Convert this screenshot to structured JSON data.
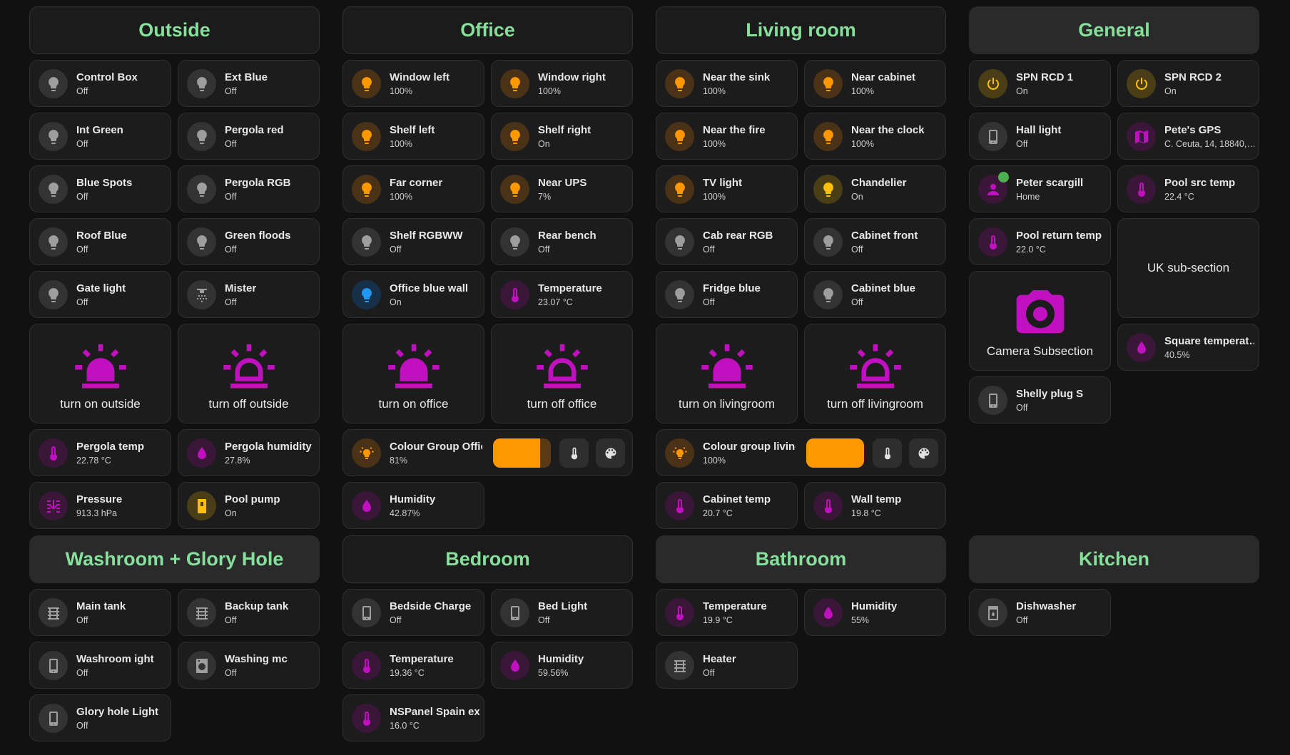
{
  "sections": [
    {
      "title": "Outside",
      "items": [
        {
          "name": "Control Box",
          "state": "Off"
        },
        {
          "name": "Ext Blue",
          "state": "Off"
        },
        {
          "name": "Int Green",
          "state": "Off"
        },
        {
          "name": "Pergola red",
          "state": "Off"
        },
        {
          "name": "Blue Spots",
          "state": "Off"
        },
        {
          "name": "Pergola RGB",
          "state": "Off"
        },
        {
          "name": "Roof Blue",
          "state": "Off"
        },
        {
          "name": "Green floods",
          "state": "Off"
        },
        {
          "name": "Gate light",
          "state": "Off"
        },
        {
          "name": "Mister",
          "state": "Off"
        },
        {
          "name": "turn on outside"
        },
        {
          "name": "turn off outside"
        },
        {
          "name": "Pergola temp",
          "state": "22.78 °C"
        },
        {
          "name": "Pergola humidity",
          "state": "27.8%"
        },
        {
          "name": "Pressure",
          "state": "913.3 hPa"
        },
        {
          "name": "Pool pump",
          "state": "On"
        }
      ]
    },
    {
      "title": "Office",
      "items": [
        {
          "name": "Window left",
          "state": "100%"
        },
        {
          "name": "Window right",
          "state": "100%"
        },
        {
          "name": "Shelf left",
          "state": "100%"
        },
        {
          "name": "Shelf right",
          "state": "On"
        },
        {
          "name": "Far corner",
          "state": "100%"
        },
        {
          "name": "Near UPS",
          "state": "7%"
        },
        {
          "name": "Shelf RGBWW",
          "state": "Off"
        },
        {
          "name": "Rear bench",
          "state": "Off"
        },
        {
          "name": "Office blue wall",
          "state": "On"
        },
        {
          "name": "Temperature",
          "state": "23.07 °C"
        },
        {
          "name": "turn on office"
        },
        {
          "name": "turn off office"
        },
        {
          "name": "Colour Group Office",
          "state": "81%"
        },
        {
          "name": "Humidity",
          "state": "42.87%"
        }
      ]
    },
    {
      "title": "Living room",
      "items": [
        {
          "name": "Near the sink",
          "state": "100%"
        },
        {
          "name": "Near cabinet",
          "state": "100%"
        },
        {
          "name": "Near the fire",
          "state": "100%"
        },
        {
          "name": "Near the clock",
          "state": "100%"
        },
        {
          "name": "TV light",
          "state": "100%"
        },
        {
          "name": "Chandelier",
          "state": "On"
        },
        {
          "name": "Cab rear RGB",
          "state": "Off"
        },
        {
          "name": "Cabinet front",
          "state": "Off"
        },
        {
          "name": "Fridge blue",
          "state": "Off"
        },
        {
          "name": "Cabinet blue",
          "state": "Off"
        },
        {
          "name": "turn on livingroom"
        },
        {
          "name": "turn off livingroom"
        },
        {
          "name": "Colour group living…",
          "state": "100%"
        },
        {
          "name": "Cabinet temp",
          "state": "20.7 °C"
        },
        {
          "name": "Wall temp",
          "state": "19.8 °C"
        }
      ]
    },
    {
      "title": "General",
      "items": [
        {
          "name": "SPN RCD 1",
          "state": "On"
        },
        {
          "name": "SPN RCD 2",
          "state": "On"
        },
        {
          "name": "Hall light",
          "state": "Off"
        },
        {
          "name": "Pete's GPS",
          "state": "C. Ceuta, 14, 18840,…"
        },
        {
          "name": "Peter scargill",
          "state": "Home"
        },
        {
          "name": "Pool src temp",
          "state": "22.4 °C"
        },
        {
          "name": "Pool return temp",
          "state": "22.0 °C"
        },
        {
          "name": "UK sub-section"
        },
        {
          "name": "Camera Subsection"
        },
        {
          "name": "Square temperat…",
          "state": "40.5%"
        },
        {
          "name": "Shelly plug S",
          "state": "Off"
        }
      ]
    },
    {
      "title": "Washroom + Glory Hole",
      "items": [
        {
          "name": "Main tank",
          "state": "Off"
        },
        {
          "name": "Backup tank",
          "state": "Off"
        },
        {
          "name": "Washroom ight",
          "state": "Off"
        },
        {
          "name": "Washing mc",
          "state": "Off"
        },
        {
          "name": "Glory hole Light",
          "state": "Off"
        }
      ]
    },
    {
      "title": "Bedroom",
      "items": [
        {
          "name": "Bedside Charge",
          "state": "Off"
        },
        {
          "name": "Bed Light",
          "state": "Off"
        },
        {
          "name": "Temperature",
          "state": "19.36 °C"
        },
        {
          "name": "Humidity",
          "state": "59.56%"
        },
        {
          "name": "NSPanel Spain ext",
          "state": "16.0 °C"
        }
      ]
    },
    {
      "title": "Bathroom",
      "items": [
        {
          "name": "Temperature",
          "state": "19.9 °C"
        },
        {
          "name": "Humidity",
          "state": "55%"
        },
        {
          "name": "Heater",
          "state": "Off"
        }
      ]
    },
    {
      "title": "Kitchen",
      "items": [
        {
          "name": "Dishwasher",
          "state": "Off"
        }
      ]
    }
  ]
}
